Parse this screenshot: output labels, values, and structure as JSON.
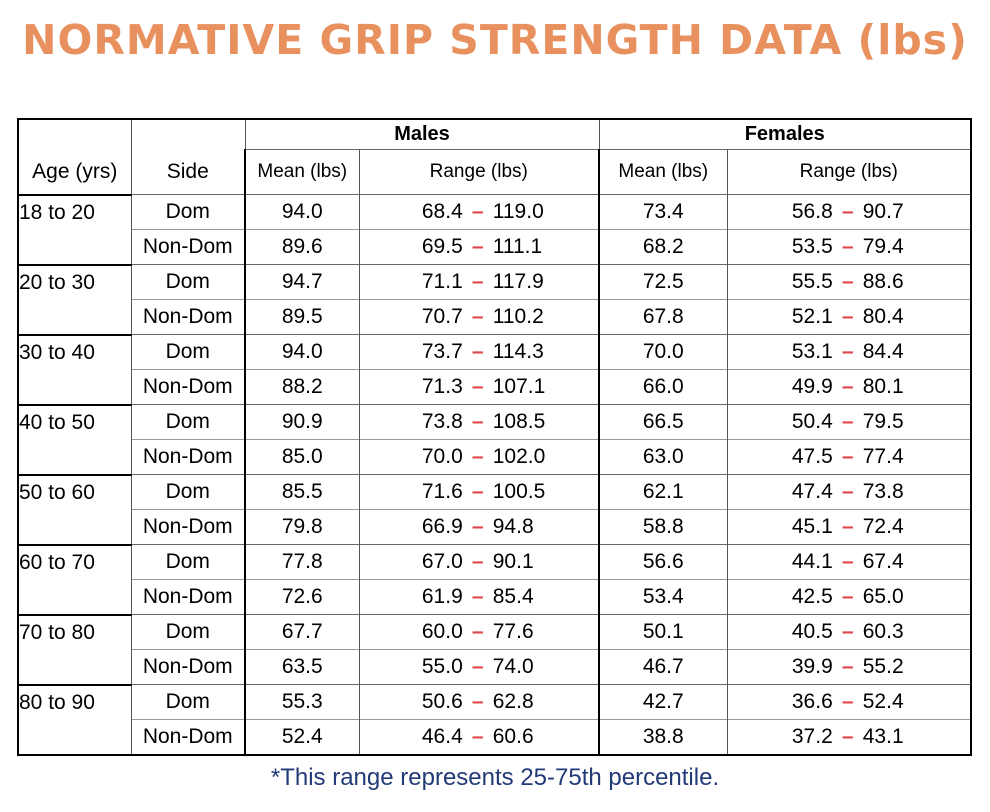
{
  "title": "NORMATIVE GRIP STRENGTH DATA (lbs)",
  "headers": {
    "males": "Males",
    "females": "Females",
    "age": "Age (yrs)",
    "side": "Side",
    "mean": "Mean (lbs)",
    "range": "Range (lbs)"
  },
  "range_separator": "–",
  "range_separator_color": "#e0474c",
  "title_color": "#e8905e",
  "footnote_color": "#233a78",
  "rows": [
    {
      "age": "18 to 20",
      "side": "Dom",
      "m_mean": "94.0",
      "m_lo": "68.4",
      "m_hi": "119.0",
      "f_mean": "73.4",
      "f_lo": "56.8",
      "f_hi": "90.7"
    },
    {
      "age": "",
      "side": "Non-Dom",
      "m_mean": "89.6",
      "m_lo": "69.5",
      "m_hi": "111.1",
      "f_mean": "68.2",
      "f_lo": "53.5",
      "f_hi": "79.4"
    },
    {
      "age": "20 to 30",
      "side": "Dom",
      "m_mean": "94.7",
      "m_lo": "71.1",
      "m_hi": "117.9",
      "f_mean": "72.5",
      "f_lo": "55.5",
      "f_hi": "88.6"
    },
    {
      "age": "",
      "side": "Non-Dom",
      "m_mean": "89.5",
      "m_lo": "70.7",
      "m_hi": "110.2",
      "f_mean": "67.8",
      "f_lo": "52.1",
      "f_hi": "80.4"
    },
    {
      "age": "30 to 40",
      "side": "Dom",
      "m_mean": "94.0",
      "m_lo": "73.7",
      "m_hi": "114.3",
      "f_mean": "70.0",
      "f_lo": "53.1",
      "f_hi": "84.4"
    },
    {
      "age": "",
      "side": "Non-Dom",
      "m_mean": "88.2",
      "m_lo": "71.3",
      "m_hi": "107.1",
      "f_mean": "66.0",
      "f_lo": "49.9",
      "f_hi": "80.1"
    },
    {
      "age": "40 to 50",
      "side": "Dom",
      "m_mean": "90.9",
      "m_lo": "73.8",
      "m_hi": "108.5",
      "f_mean": "66.5",
      "f_lo": "50.4",
      "f_hi": "79.5"
    },
    {
      "age": "",
      "side": "Non-Dom",
      "m_mean": "85.0",
      "m_lo": "70.0",
      "m_hi": "102.0",
      "f_mean": "63.0",
      "f_lo": "47.5",
      "f_hi": "77.4"
    },
    {
      "age": "50 to 60",
      "side": "Dom",
      "m_mean": "85.5",
      "m_lo": "71.6",
      "m_hi": "100.5",
      "f_mean": "62.1",
      "f_lo": "47.4",
      "f_hi": "73.8"
    },
    {
      "age": "",
      "side": "Non-Dom",
      "m_mean": "79.8",
      "m_lo": "66.9",
      "m_hi": "94.8",
      "f_mean": "58.8",
      "f_lo": "45.1",
      "f_hi": "72.4"
    },
    {
      "age": "60 to 70",
      "side": "Dom",
      "m_mean": "77.8",
      "m_lo": "67.0",
      "m_hi": "90.1",
      "f_mean": "56.6",
      "f_lo": "44.1",
      "f_hi": "67.4"
    },
    {
      "age": "",
      "side": "Non-Dom",
      "m_mean": "72.6",
      "m_lo": "61.9",
      "m_hi": "85.4",
      "f_mean": "53.4",
      "f_lo": "42.5",
      "f_hi": "65.0"
    },
    {
      "age": "70 to 80",
      "side": "Dom",
      "m_mean": "67.7",
      "m_lo": "60.0",
      "m_hi": "77.6",
      "f_mean": "50.1",
      "f_lo": "40.5",
      "f_hi": "60.3"
    },
    {
      "age": "",
      "side": "Non-Dom",
      "m_mean": "63.5",
      "m_lo": "55.0",
      "m_hi": "74.0",
      "f_mean": "46.7",
      "f_lo": "39.9",
      "f_hi": "55.2"
    },
    {
      "age": "80 to 90",
      "side": "Dom",
      "m_mean": "55.3",
      "m_lo": "50.6",
      "m_hi": "62.8",
      "f_mean": "42.7",
      "f_lo": "36.6",
      "f_hi": "52.4"
    },
    {
      "age": "",
      "side": "Non-Dom",
      "m_mean": "52.4",
      "m_lo": "46.4",
      "m_hi": "60.6",
      "f_mean": "38.8",
      "f_lo": "37.2",
      "f_hi": "43.1"
    }
  ],
  "footnote": "*This range represents 25-75th percentile."
}
